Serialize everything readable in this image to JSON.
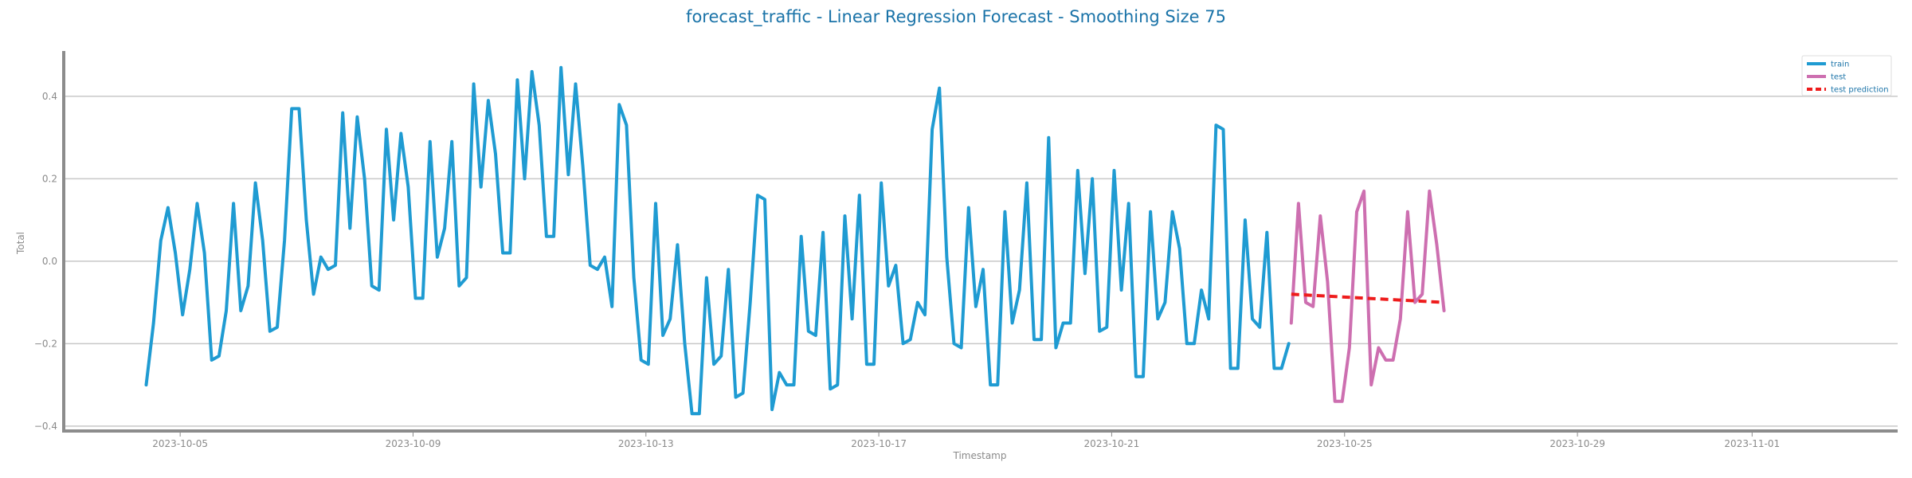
{
  "chart_data": {
    "type": "line",
    "title": "forecast_traffic - Linear Regression Forecast - Smoothing Size 75",
    "xlabel": "Timestamp",
    "ylabel": "Total",
    "xlim": [
      "2023-10-03T00:00",
      "2023-11-03T12:00"
    ],
    "ylim": [
      -0.41,
      0.51
    ],
    "x_ticks": [
      "2023-10-05",
      "2023-10-09",
      "2023-10-13",
      "2023-10-17",
      "2023-10-21",
      "2023-10-25",
      "2023-10-29",
      "2023-11-01"
    ],
    "y_ticks": [
      "0.4",
      "0.2",
      "0.0",
      "−0.2",
      "−0.4"
    ],
    "y_tick_values": [
      0.4,
      0.2,
      0.0,
      -0.2,
      -0.4
    ],
    "grid": "horizontal",
    "legend_position": "top-right",
    "series": [
      {
        "name": "train",
        "color": "#1f9bd2",
        "style": "solid",
        "points": [
          [
            "2023-10-04T10:00",
            -0.3
          ],
          [
            "2023-10-04T13:00",
            -0.15
          ],
          [
            "2023-10-04T16:00",
            0.05
          ],
          [
            "2023-10-04T19:00",
            0.13
          ],
          [
            "2023-10-04T22:00",
            0.02
          ],
          [
            "2023-10-05T01:00",
            -0.13
          ],
          [
            "2023-10-05T04:00",
            -0.02
          ],
          [
            "2023-10-05T07:00",
            0.14
          ],
          [
            "2023-10-05T10:00",
            0.02
          ],
          [
            "2023-10-05T13:00",
            -0.24
          ],
          [
            "2023-10-05T16:00",
            -0.23
          ],
          [
            "2023-10-05T19:00",
            -0.12
          ],
          [
            "2023-10-05T22:00",
            0.14
          ],
          [
            "2023-10-06T01:00",
            -0.12
          ],
          [
            "2023-10-06T04:00",
            -0.06
          ],
          [
            "2023-10-06T07:00",
            0.19
          ],
          [
            "2023-10-06T10:00",
            0.05
          ],
          [
            "2023-10-06T13:00",
            -0.17
          ],
          [
            "2023-10-06T16:00",
            -0.16
          ],
          [
            "2023-10-06T19:00",
            0.05
          ],
          [
            "2023-10-06T22:00",
            0.37
          ],
          [
            "2023-10-07T01:00",
            0.37
          ],
          [
            "2023-10-07T04:00",
            0.1
          ],
          [
            "2023-10-07T07:00",
            -0.08
          ],
          [
            "2023-10-07T10:00",
            0.01
          ],
          [
            "2023-10-07T13:00",
            -0.02
          ],
          [
            "2023-10-07T16:00",
            -0.01
          ],
          [
            "2023-10-07T19:00",
            0.36
          ],
          [
            "2023-10-07T22:00",
            0.08
          ],
          [
            "2023-10-08T01:00",
            0.35
          ],
          [
            "2023-10-08T04:00",
            0.2
          ],
          [
            "2023-10-08T07:00",
            -0.06
          ],
          [
            "2023-10-08T10:00",
            -0.07
          ],
          [
            "2023-10-08T13:00",
            0.32
          ],
          [
            "2023-10-08T16:00",
            0.1
          ],
          [
            "2023-10-08T19:00",
            0.31
          ],
          [
            "2023-10-08T22:00",
            0.18
          ],
          [
            "2023-10-09T01:00",
            -0.09
          ],
          [
            "2023-10-09T04:00",
            -0.09
          ],
          [
            "2023-10-09T07:00",
            0.29
          ],
          [
            "2023-10-09T10:00",
            0.01
          ],
          [
            "2023-10-09T13:00",
            0.08
          ],
          [
            "2023-10-09T16:00",
            0.29
          ],
          [
            "2023-10-09T19:00",
            -0.06
          ],
          [
            "2023-10-09T22:00",
            -0.04
          ],
          [
            "2023-10-10T01:00",
            0.43
          ],
          [
            "2023-10-10T04:00",
            0.18
          ],
          [
            "2023-10-10T07:00",
            0.39
          ],
          [
            "2023-10-10T10:00",
            0.26
          ],
          [
            "2023-10-10T13:00",
            0.02
          ],
          [
            "2023-10-10T16:00",
            0.02
          ],
          [
            "2023-10-10T19:00",
            0.44
          ],
          [
            "2023-10-10T22:00",
            0.2
          ],
          [
            "2023-10-11T01:00",
            0.46
          ],
          [
            "2023-10-11T04:00",
            0.33
          ],
          [
            "2023-10-11T07:00",
            0.06
          ],
          [
            "2023-10-11T10:00",
            0.06
          ],
          [
            "2023-10-11T13:00",
            0.47
          ],
          [
            "2023-10-11T16:00",
            0.21
          ],
          [
            "2023-10-11T19:00",
            0.43
          ],
          [
            "2023-10-11T22:00",
            0.23
          ],
          [
            "2023-10-12T01:00",
            -0.01
          ],
          [
            "2023-10-12T04:00",
            -0.02
          ],
          [
            "2023-10-12T07:00",
            0.01
          ],
          [
            "2023-10-12T10:00",
            -0.11
          ],
          [
            "2023-10-12T13:00",
            0.38
          ],
          [
            "2023-10-12T16:00",
            0.33
          ],
          [
            "2023-10-12T19:00",
            -0.04
          ],
          [
            "2023-10-12T22:00",
            -0.24
          ],
          [
            "2023-10-13T01:00",
            -0.25
          ],
          [
            "2023-10-13T04:00",
            0.14
          ],
          [
            "2023-10-13T07:00",
            -0.18
          ],
          [
            "2023-10-13T10:00",
            -0.14
          ],
          [
            "2023-10-13T13:00",
            0.04
          ],
          [
            "2023-10-13T16:00",
            -0.2
          ],
          [
            "2023-10-13T19:00",
            -0.37
          ],
          [
            "2023-10-13T22:00",
            -0.37
          ],
          [
            "2023-10-14T01:00",
            -0.04
          ],
          [
            "2023-10-14T04:00",
            -0.25
          ],
          [
            "2023-10-14T07:00",
            -0.23
          ],
          [
            "2023-10-14T10:00",
            -0.02
          ],
          [
            "2023-10-14T13:00",
            -0.33
          ],
          [
            "2023-10-14T16:00",
            -0.32
          ],
          [
            "2023-10-14T19:00",
            -0.1
          ],
          [
            "2023-10-14T22:00",
            0.16
          ],
          [
            "2023-10-15T01:00",
            0.15
          ],
          [
            "2023-10-15T04:00",
            -0.36
          ],
          [
            "2023-10-15T07:00",
            -0.27
          ],
          [
            "2023-10-15T10:00",
            -0.3
          ],
          [
            "2023-10-15T13:00",
            -0.3
          ],
          [
            "2023-10-15T16:00",
            0.06
          ],
          [
            "2023-10-15T19:00",
            -0.17
          ],
          [
            "2023-10-15T22:00",
            -0.18
          ],
          [
            "2023-10-16T01:00",
            0.07
          ],
          [
            "2023-10-16T04:00",
            -0.31
          ],
          [
            "2023-10-16T07:00",
            -0.3
          ],
          [
            "2023-10-16T10:00",
            0.11
          ],
          [
            "2023-10-16T13:00",
            -0.14
          ],
          [
            "2023-10-16T16:00",
            0.16
          ],
          [
            "2023-10-16T19:00",
            -0.25
          ],
          [
            "2023-10-16T22:00",
            -0.25
          ],
          [
            "2023-10-17T01:00",
            0.19
          ],
          [
            "2023-10-17T04:00",
            -0.06
          ],
          [
            "2023-10-17T07:00",
            -0.01
          ],
          [
            "2023-10-17T10:00",
            -0.2
          ],
          [
            "2023-10-17T13:00",
            -0.19
          ],
          [
            "2023-10-17T16:00",
            -0.1
          ],
          [
            "2023-10-17T19:00",
            -0.13
          ],
          [
            "2023-10-17T22:00",
            0.32
          ],
          [
            "2023-10-18T01:00",
            0.42
          ],
          [
            "2023-10-18T04:00",
            0.01
          ],
          [
            "2023-10-18T07:00",
            -0.2
          ],
          [
            "2023-10-18T10:00",
            -0.21
          ],
          [
            "2023-10-18T13:00",
            0.13
          ],
          [
            "2023-10-18T16:00",
            -0.11
          ],
          [
            "2023-10-18T19:00",
            -0.02
          ],
          [
            "2023-10-18T22:00",
            -0.3
          ],
          [
            "2023-10-19T01:00",
            -0.3
          ],
          [
            "2023-10-19T04:00",
            0.12
          ],
          [
            "2023-10-19T07:00",
            -0.15
          ],
          [
            "2023-10-19T10:00",
            -0.07
          ],
          [
            "2023-10-19T13:00",
            0.19
          ],
          [
            "2023-10-19T16:00",
            -0.19
          ],
          [
            "2023-10-19T19:00",
            -0.19
          ],
          [
            "2023-10-19T22:00",
            0.3
          ],
          [
            "2023-10-20T01:00",
            -0.21
          ],
          [
            "2023-10-20T04:00",
            -0.15
          ],
          [
            "2023-10-20T07:00",
            -0.15
          ],
          [
            "2023-10-20T10:00",
            0.22
          ],
          [
            "2023-10-20T13:00",
            -0.03
          ],
          [
            "2023-10-20T16:00",
            0.2
          ],
          [
            "2023-10-20T19:00",
            -0.17
          ],
          [
            "2023-10-20T22:00",
            -0.16
          ],
          [
            "2023-10-21T01:00",
            0.22
          ],
          [
            "2023-10-21T04:00",
            -0.07
          ],
          [
            "2023-10-21T07:00",
            0.14
          ],
          [
            "2023-10-21T10:00",
            -0.28
          ],
          [
            "2023-10-21T13:00",
            -0.28
          ],
          [
            "2023-10-21T16:00",
            0.12
          ],
          [
            "2023-10-21T19:00",
            -0.14
          ],
          [
            "2023-10-21T22:00",
            -0.1
          ],
          [
            "2023-10-22T01:00",
            0.12
          ],
          [
            "2023-10-22T04:00",
            0.03
          ],
          [
            "2023-10-22T07:00",
            -0.2
          ],
          [
            "2023-10-22T10:00",
            -0.2
          ],
          [
            "2023-10-22T13:00",
            -0.07
          ],
          [
            "2023-10-22T16:00",
            -0.14
          ],
          [
            "2023-10-22T19:00",
            0.33
          ],
          [
            "2023-10-22T22:00",
            0.32
          ],
          [
            "2023-10-23T01:00",
            -0.26
          ],
          [
            "2023-10-23T04:00",
            -0.26
          ],
          [
            "2023-10-23T07:00",
            0.1
          ],
          [
            "2023-10-23T10:00",
            -0.14
          ],
          [
            "2023-10-23T13:00",
            -0.16
          ],
          [
            "2023-10-23T16:00",
            0.07
          ],
          [
            "2023-10-23T19:00",
            -0.26
          ],
          [
            "2023-10-23T22:00",
            -0.26
          ],
          [
            "2023-10-24T01:00",
            -0.2
          ]
        ]
      },
      {
        "name": "test",
        "color": "#cd6fb0",
        "style": "solid",
        "points": [
          [
            "2023-10-24T02:00",
            -0.15
          ],
          [
            "2023-10-24T05:00",
            0.14
          ],
          [
            "2023-10-24T08:00",
            -0.1
          ],
          [
            "2023-10-24T11:00",
            -0.11
          ],
          [
            "2023-10-24T14:00",
            0.11
          ],
          [
            "2023-10-24T17:00",
            -0.05
          ],
          [
            "2023-10-24T20:00",
            -0.34
          ],
          [
            "2023-10-24T23:00",
            -0.34
          ],
          [
            "2023-10-25T02:00",
            -0.21
          ],
          [
            "2023-10-25T05:00",
            0.12
          ],
          [
            "2023-10-25T08:00",
            0.17
          ],
          [
            "2023-10-25T11:00",
            -0.3
          ],
          [
            "2023-10-25T14:00",
            -0.21
          ],
          [
            "2023-10-25T17:00",
            -0.24
          ],
          [
            "2023-10-25T20:00",
            -0.24
          ],
          [
            "2023-10-25T23:00",
            -0.14
          ],
          [
            "2023-10-26T02:00",
            0.12
          ],
          [
            "2023-10-26T05:00",
            -0.1
          ],
          [
            "2023-10-26T08:00",
            -0.08
          ],
          [
            "2023-10-26T11:00",
            0.17
          ],
          [
            "2023-10-26T14:00",
            0.04
          ],
          [
            "2023-10-26T17:00",
            -0.12
          ]
        ]
      },
      {
        "name": "test prediction",
        "color": "#ee1c1c",
        "style": "dashed",
        "points": [
          [
            "2023-10-24T02:00",
            -0.08
          ],
          [
            "2023-10-26T17:00",
            -0.1
          ]
        ]
      }
    ]
  }
}
